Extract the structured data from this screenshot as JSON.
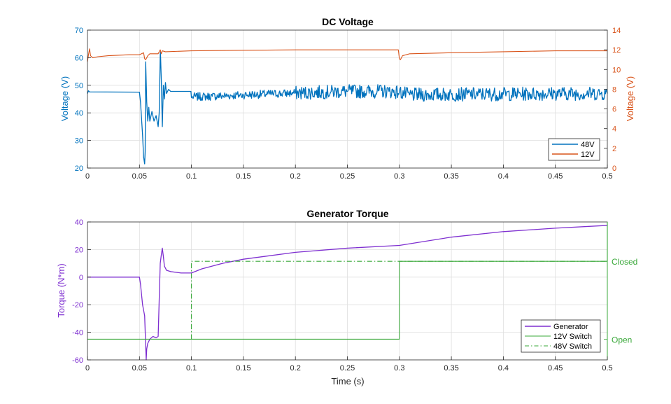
{
  "colors": {
    "blue": "#0072BD",
    "orange": "#D95319",
    "purple": "#7E2FD0",
    "green": "#3AA83A",
    "axis": "#262626",
    "grid": "#DFDFDF"
  },
  "chart_data": [
    {
      "type": "line",
      "title": "DC Voltage",
      "xlabel": "",
      "ylabel_left": "Voltage (V)",
      "ylabel_right": "Voltage (V)",
      "xlim": [
        0,
        0.5
      ],
      "ylim_left": [
        20,
        70
      ],
      "ylim_right": [
        0,
        14
      ],
      "x_ticks": [
        "0",
        "0.05",
        "0.1",
        "0.15",
        "0.2",
        "0.25",
        "0.3",
        "0.35",
        "0.4",
        "0.45",
        "0.5"
      ],
      "y_ticks_left": [
        "20",
        "30",
        "40",
        "50",
        "60",
        "70"
      ],
      "y_ticks_right": [
        "0",
        "2",
        "4",
        "6",
        "8",
        "10",
        "12",
        "14"
      ],
      "grid": true,
      "legend_position": "bottom-right",
      "series": [
        {
          "name": "48V",
          "axis": "left",
          "color": "#0072BD",
          "x": [
            0,
            0.001,
            0.002,
            0.05,
            0.051,
            0.053,
            0.054,
            0.055,
            0.0555,
            0.056,
            0.057,
            0.058,
            0.059,
            0.06,
            0.062,
            0.064,
            0.066,
            0.068,
            0.069,
            0.07,
            0.0702,
            0.071,
            0.072,
            0.073,
            0.074,
            0.075,
            0.076,
            0.078,
            0.08,
            0.09,
            0.0995,
            0.1,
            0.101,
            0.12,
            0.15,
            0.2,
            0.25,
            0.29,
            0.3,
            0.31,
            0.35,
            0.4,
            0.45,
            0.5
          ],
          "y": [
            47,
            48,
            47.6,
            47.5,
            44,
            32,
            24,
            21.5,
            26,
            58.5,
            44,
            37,
            42,
            37,
            40.5,
            37,
            39,
            35,
            40,
            61.5,
            62,
            52,
            35,
            50,
            45,
            51,
            47,
            48.5,
            47.8,
            47.8,
            47.8,
            45.5,
            45.8,
            46,
            46.5,
            47.2,
            47.8,
            47.8,
            47.5,
            46.5,
            46.7,
            46.8,
            47,
            47
          ],
          "ripple": [
            {
              "from": 0.1,
              "to": 0.2,
              "amplitude": 1.5
            },
            {
              "from": 0.2,
              "to": 0.5,
              "amplitude": 2.5
            }
          ]
        },
        {
          "name": "12V",
          "axis": "right",
          "color": "#D95319",
          "x": [
            0,
            0.001,
            0.002,
            0.003,
            0.005,
            0.01,
            0.02,
            0.04,
            0.05,
            0.054,
            0.055,
            0.056,
            0.058,
            0.06,
            0.068,
            0.07,
            0.071,
            0.072,
            0.075,
            0.1,
            0.15,
            0.2,
            0.25,
            0.29,
            0.299,
            0.3,
            0.301,
            0.303,
            0.31,
            0.35,
            0.4,
            0.45,
            0.5
          ],
          "y": [
            10.8,
            11.5,
            12.1,
            11.4,
            11.2,
            11.3,
            11.4,
            11.5,
            11.5,
            11.7,
            11.1,
            11.0,
            11.4,
            11.6,
            11.6,
            12.0,
            11.6,
            11.9,
            11.8,
            11.9,
            11.95,
            12.0,
            12.0,
            12.0,
            12.0,
            11.1,
            11.0,
            11.4,
            11.6,
            11.7,
            11.8,
            11.9,
            11.9
          ]
        }
      ]
    },
    {
      "type": "line",
      "title": "Generator Torque",
      "xlabel": "Time (s)",
      "ylabel_left": "Torque (N*m)",
      "ylabel_right": "",
      "xlim": [
        0,
        0.5
      ],
      "ylim_left": [
        -60,
        40
      ],
      "x_ticks": [
        "0",
        "0.05",
        "0.1",
        "0.15",
        "0.2",
        "0.25",
        "0.3",
        "0.35",
        "0.4",
        "0.45",
        "0.5"
      ],
      "y_ticks_left": [
        "-60",
        "-40",
        "-20",
        "0",
        "20",
        "40"
      ],
      "y_ticks_right": [
        "Open",
        "Closed"
      ],
      "grid": true,
      "legend_position": "bottom-right",
      "series": [
        {
          "name": "Generator",
          "axis": "left",
          "color": "#7E2FD0",
          "style": "solid",
          "x": [
            0,
            0.05,
            0.051,
            0.053,
            0.055,
            0.056,
            0.0565,
            0.057,
            0.058,
            0.06,
            0.063,
            0.066,
            0.068,
            0.07,
            0.071,
            0.072,
            0.073,
            0.074,
            0.076,
            0.08,
            0.09,
            0.1,
            0.11,
            0.13,
            0.15,
            0.2,
            0.25,
            0.3,
            0.35,
            0.4,
            0.45,
            0.5
          ],
          "y": [
            0,
            0,
            -5,
            -20,
            -28,
            -50,
            -60,
            -52,
            -48,
            -45,
            -43,
            -44,
            -43,
            10,
            16,
            21,
            15,
            8,
            5,
            4,
            3,
            3,
            6,
            10,
            13,
            18,
            21,
            23,
            29,
            33,
            35.5,
            37.5
          ]
        },
        {
          "name": "12V Switch",
          "axis": "right",
          "color": "#3AA83A",
          "style": "solid",
          "x": [
            0,
            0.3,
            0.3,
            0.5,
            0.5
          ],
          "y": [
            0,
            0,
            1,
            1,
            40
          ]
        },
        {
          "name": "48V Switch",
          "axis": "right",
          "color": "#3AA83A",
          "style": "dashdot",
          "x": [
            0.1,
            0.1,
            0.5
          ],
          "y": [
            0,
            1,
            1
          ]
        }
      ]
    }
  ]
}
